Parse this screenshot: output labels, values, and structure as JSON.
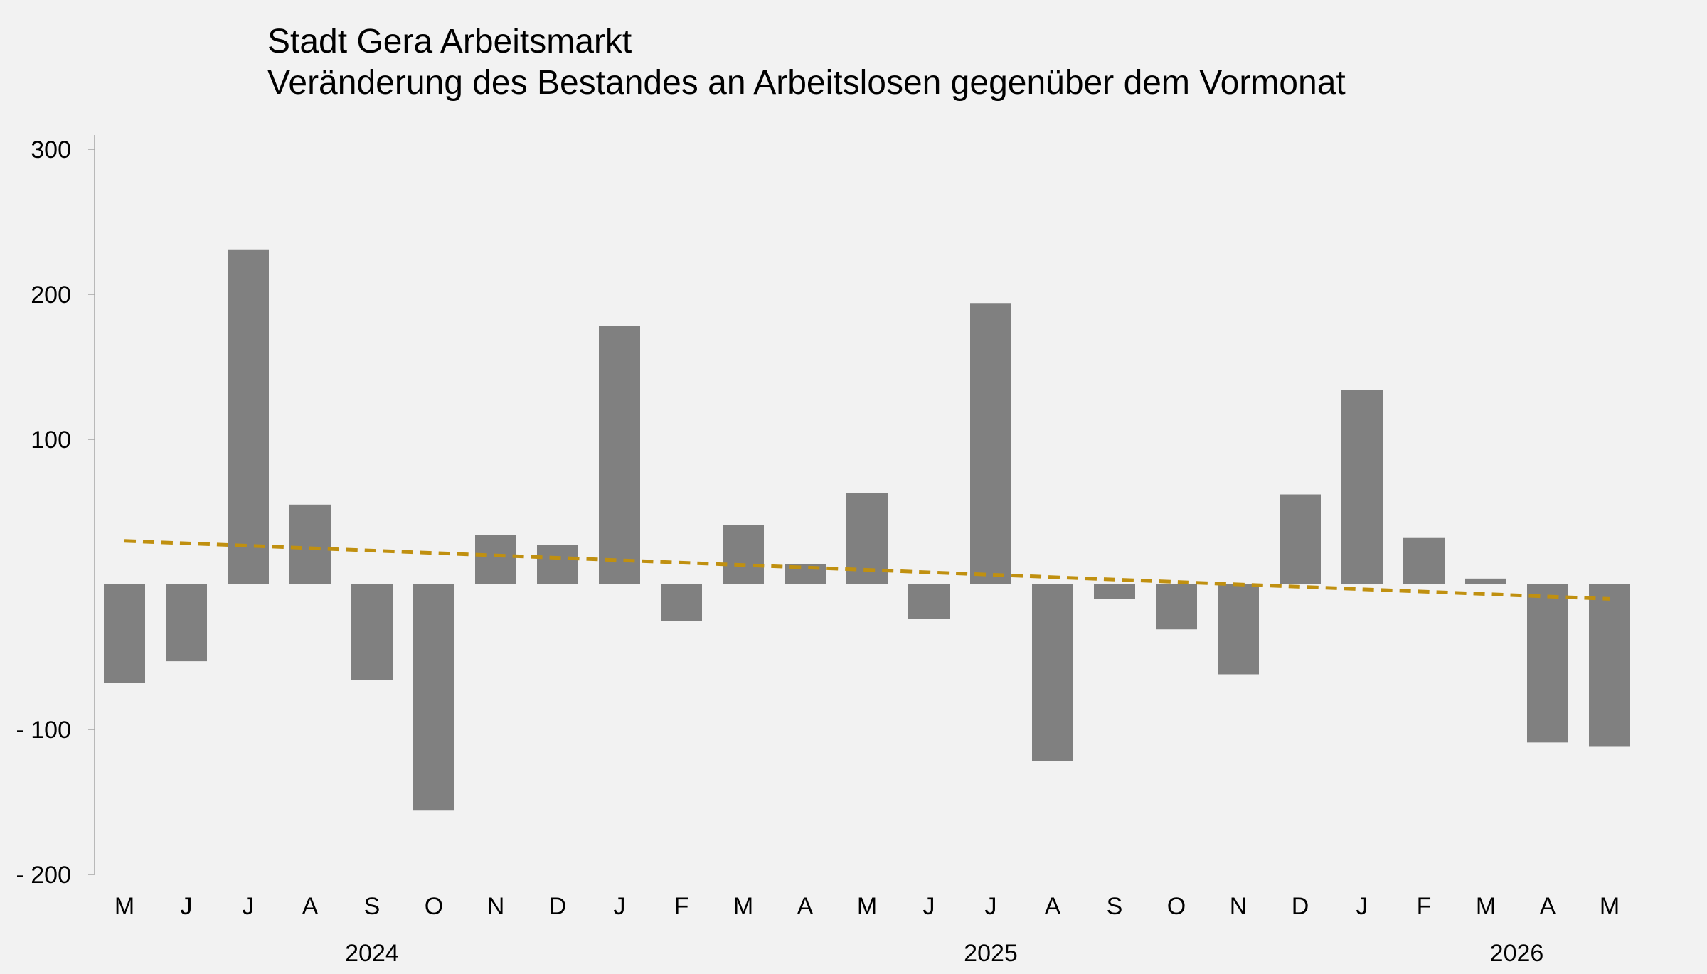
{
  "chart_data": {
    "type": "bar",
    "title": "Stadt Gera Arbeitsmarkt",
    "subtitle": "Veränderung des Bestandes an Arbeitslosen gegenüber dem Vormonat",
    "categories": [
      "M",
      "J",
      "J",
      "A",
      "S",
      "O",
      "N",
      "D",
      "J",
      "F",
      "M",
      "A",
      "M",
      "J",
      "J",
      "A",
      "S",
      "O",
      "N",
      "D",
      "J",
      "F",
      "M",
      "A",
      "M"
    ],
    "values": [
      -68,
      -53,
      231,
      55,
      -66,
      -156,
      34,
      27,
      178,
      -25,
      41,
      14,
      63,
      -24,
      194,
      -122,
      -10,
      -31,
      -62,
      62,
      134,
      32,
      4,
      -109,
      -112
    ],
    "year_labels": [
      {
        "label": "2024",
        "category_index": 4
      },
      {
        "label": "2025",
        "category_index": 14
      },
      {
        "label": "2026",
        "category_index": 22.5
      }
    ],
    "y_ticks": [
      {
        "value": 300,
        "label": "300"
      },
      {
        "value": 200,
        "label": "200"
      },
      {
        "value": 100,
        "label": "100"
      },
      {
        "value": -100,
        "label": "-  100"
      },
      {
        "value": -200,
        "label": "-  200"
      }
    ],
    "ylim": [
      -200,
      300
    ],
    "trendline": {
      "start": 30,
      "end": -10,
      "style": "dashed"
    },
    "grid": false,
    "legend": "none",
    "bar_color": "#808080",
    "trend_color": "#c09010",
    "axis_color": "#a6a6a6"
  }
}
